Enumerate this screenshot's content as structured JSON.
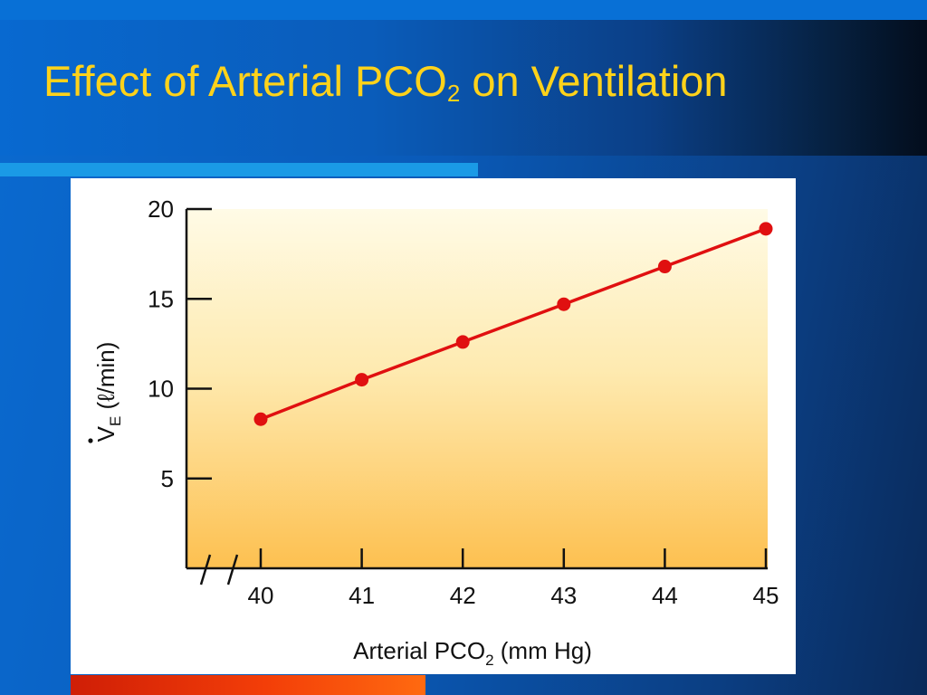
{
  "slide": {
    "title_main": "Effect of Arterial PCO",
    "title_sub": "2",
    "title_rest": " on Ventilation"
  },
  "colors": {
    "title": "#ffd21a",
    "line": "#e01010",
    "marker": "#e01010",
    "plot_top": "#fffbe6",
    "plot_bottom": "#fdc050",
    "rule_bar": "#1a9ae6",
    "bottom_accent": "#f33e08"
  },
  "chart_data": {
    "type": "line",
    "title": "",
    "xlabel_main": "Arterial PCO",
    "xlabel_sub": "2",
    "xlabel_rest": " (mm Hg)",
    "ylabel_main": "V",
    "ylabel_sub": "E",
    "ylabel_rest": " (ℓ/min)",
    "x_ticks": [
      40,
      41,
      42,
      43,
      44,
      45
    ],
    "y_ticks": [
      5,
      10,
      15,
      20
    ],
    "xlim": [
      40,
      45
    ],
    "ylim": [
      0,
      20
    ],
    "x_axis_break": true,
    "grid": false,
    "legend": "none",
    "series": [
      {
        "x": [
          40,
          41,
          42,
          43,
          44,
          45
        ],
        "y": [
          8.3,
          10.5,
          12.6,
          14.7,
          16.8,
          18.9
        ]
      }
    ]
  }
}
